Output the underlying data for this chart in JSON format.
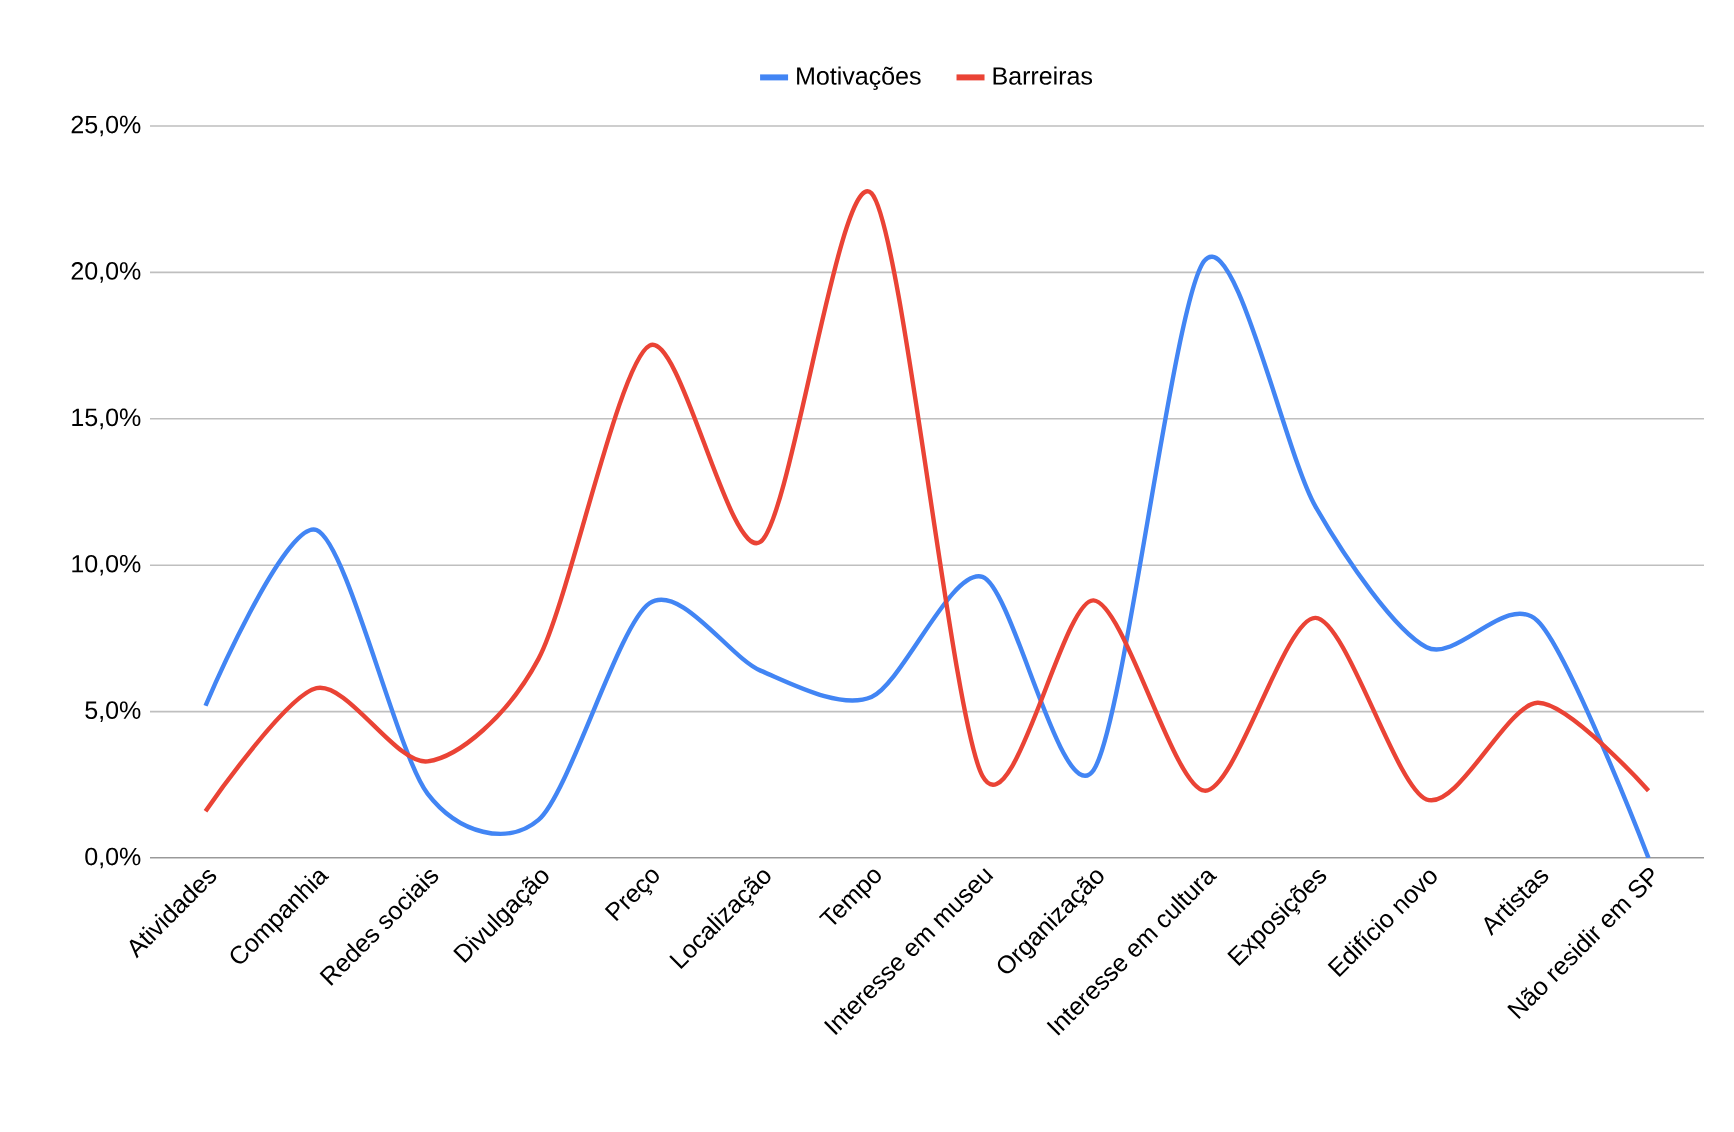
{
  "chart_data": {
    "type": "line",
    "categories": [
      "Atividades",
      "Companhia",
      "Redes sociais",
      "Divulgação",
      "Preço",
      "Localização",
      "Tempo",
      "Interesse em museu",
      "Organização",
      "Interesse em cultura",
      "Exposições",
      "Edifício novo",
      "Artistas",
      "Não residir em SP"
    ],
    "series": [
      {
        "name": "Motivações",
        "color": "#4285f4",
        "values": [
          5.2,
          11.2,
          2.2,
          1.3,
          8.7,
          6.4,
          5.5,
          9.6,
          3.0,
          20.4,
          12.0,
          7.2,
          8.1,
          0
        ]
      },
      {
        "name": "Barreiras",
        "color": "#ea4335",
        "values": [
          1.6,
          5.8,
          3.3,
          6.8,
          17.5,
          10.8,
          22.7,
          2.8,
          8.8,
          2.3,
          8.2,
          2.0,
          5.3,
          2.3
        ]
      }
    ],
    "ylim": [
      0,
      25
    ],
    "yticks": [
      {
        "value": 0,
        "label": "0,0%"
      },
      {
        "value": 5,
        "label": "5,0%"
      },
      {
        "value": 10,
        "label": "10,0%"
      },
      {
        "value": 15,
        "label": "15,0%"
      },
      {
        "value": 20,
        "label": "20,0%"
      },
      {
        "value": 25,
        "label": "25,0%"
      }
    ],
    "grid": "y",
    "legend": "top",
    "marker": "none",
    "line_style": "solid"
  }
}
